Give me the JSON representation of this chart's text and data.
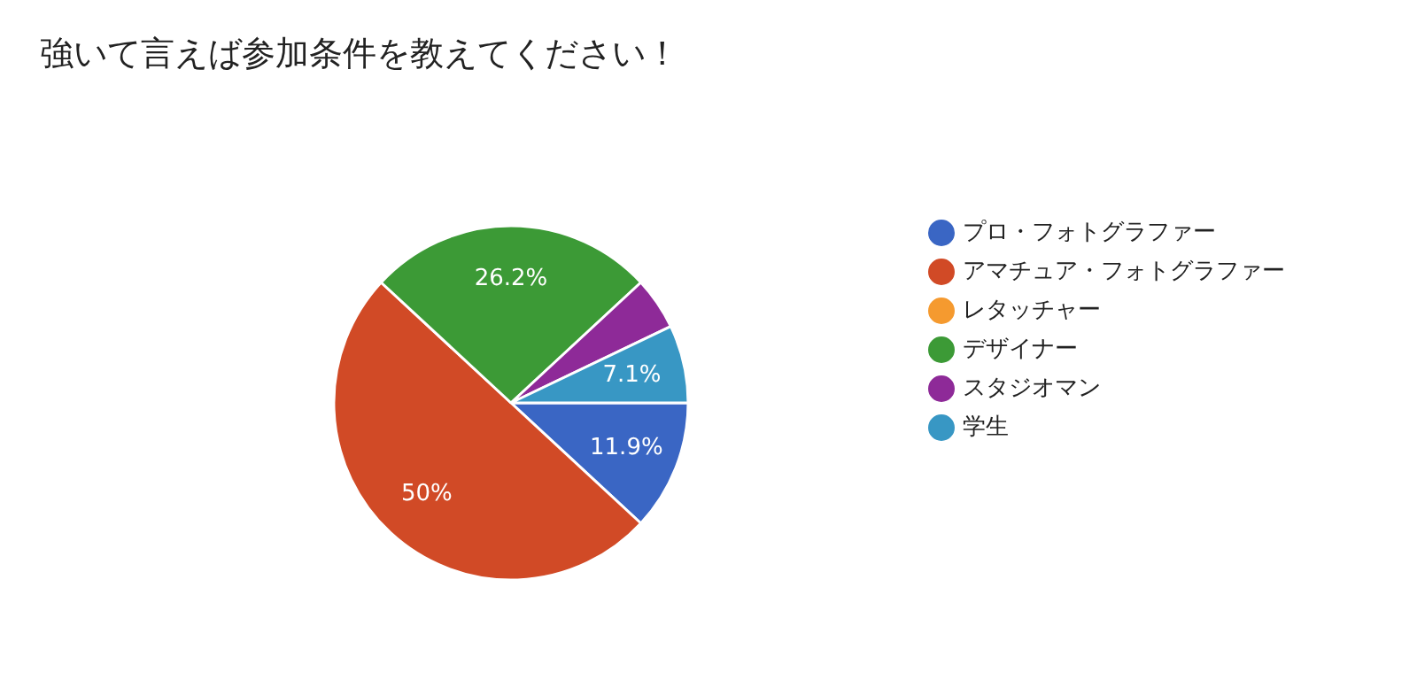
{
  "chart_data": {
    "type": "pie",
    "title": "強いて言えば参加条件を教えてください！",
    "categories": [
      "プロ・フォトグラファー",
      "アマチュア・フォトグラファー",
      "レタッチャー",
      "デザイナー",
      "スタジオマン",
      "学生"
    ],
    "values": [
      11.9,
      50,
      0,
      26.2,
      4.8,
      7.1
    ],
    "colors": [
      "#3a66c4",
      "#d14a26",
      "#f59a2f",
      "#3c9a36",
      "#8e2a98",
      "#3897c4"
    ],
    "value_labels": [
      "11.9%",
      "50%",
      null,
      "26.2%",
      null,
      "7.1%"
    ],
    "legend": "right"
  }
}
